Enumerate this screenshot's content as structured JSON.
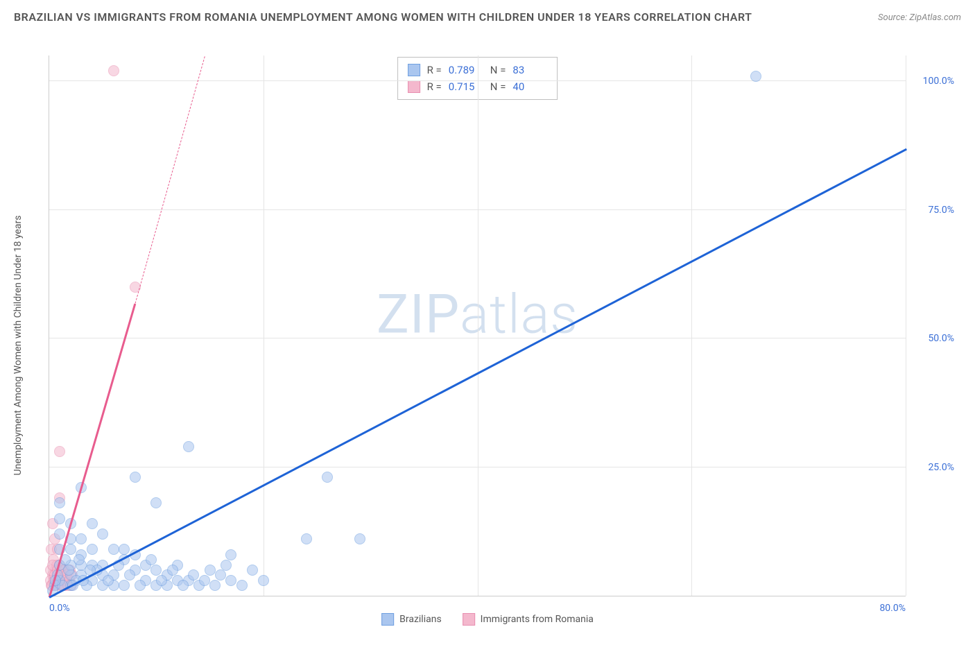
{
  "title": "BRAZILIAN VS IMMIGRANTS FROM ROMANIA UNEMPLOYMENT AMONG WOMEN WITH CHILDREN UNDER 18 YEARS CORRELATION CHART",
  "source": "Source: ZipAtlas.com",
  "yaxis_label": "Unemployment Among Women with Children Under 18 years",
  "watermark_a": "ZIP",
  "watermark_b": "atlas",
  "chart": {
    "type": "scatter",
    "xlim": [
      0,
      80
    ],
    "ylim": [
      0,
      105
    ],
    "xticks": [
      0.0,
      20.0,
      40.0,
      60.0,
      80.0
    ],
    "xtick_labels": [
      "0.0%",
      "",
      "",
      "",
      "80.0%"
    ],
    "yticks": [
      25.0,
      50.0,
      75.0,
      100.0
    ],
    "ytick_labels": [
      "25.0%",
      "50.0%",
      "75.0%",
      "100.0%"
    ],
    "grid_color": "#e5e5e5",
    "tick_label_color": "#3b6fd6",
    "background_color": "#ffffff",
    "series": [
      {
        "name": "Brazilians",
        "fill": "#aac6ef",
        "stroke": "#6f9fe0",
        "fill_opacity": 0.55,
        "marker_radius": 8,
        "trend_color": "#1e63d6",
        "trend": {
          "x1": 0,
          "y1": 0,
          "x2": 80,
          "y2": 87
        },
        "stats": {
          "R": "0.789",
          "N": "83"
        },
        "points": [
          [
            66,
            101
          ],
          [
            26,
            23
          ],
          [
            13,
            29
          ],
          [
            8,
            23
          ],
          [
            24,
            11
          ],
          [
            10,
            18
          ],
          [
            29,
            11
          ],
          [
            17,
            8
          ],
          [
            3,
            21
          ],
          [
            1,
            18
          ],
          [
            1,
            15
          ],
          [
            1,
            12
          ],
          [
            2,
            9
          ],
          [
            1,
            3
          ],
          [
            2,
            2
          ],
          [
            3,
            11
          ],
          [
            4,
            14
          ],
          [
            5,
            12
          ],
          [
            6,
            9
          ],
          [
            7,
            7
          ],
          [
            8,
            5
          ],
          [
            9,
            3
          ],
          [
            10,
            2
          ],
          [
            11,
            4
          ],
          [
            12,
            6
          ],
          [
            13,
            3
          ],
          [
            14,
            2
          ],
          [
            15,
            5
          ],
          [
            16,
            4
          ],
          [
            17,
            3
          ],
          [
            18,
            2
          ],
          [
            19,
            5
          ],
          [
            20,
            3
          ],
          [
            5,
            2
          ],
          [
            6,
            4
          ],
          [
            7,
            2
          ],
          [
            8,
            8
          ],
          [
            9,
            6
          ],
          [
            10,
            5
          ],
          [
            11,
            2
          ],
          [
            12,
            3
          ],
          [
            2,
            6
          ],
          [
            3,
            4
          ],
          [
            4,
            3
          ],
          [
            5,
            6
          ],
          [
            6,
            2
          ],
          [
            7,
            9
          ],
          [
            2,
            14
          ],
          [
            3,
            8
          ],
          [
            4,
            6
          ],
          [
            5,
            4
          ],
          [
            2,
            4
          ],
          [
            1,
            6
          ],
          [
            1,
            9
          ],
          [
            2,
            11
          ],
          [
            3,
            6
          ],
          [
            4,
            9
          ],
          [
            0.5,
            2
          ],
          [
            0.8,
            4
          ],
          [
            1.2,
            2
          ],
          [
            1.5,
            7
          ],
          [
            2.5,
            3
          ],
          [
            3.5,
            2
          ],
          [
            4.5,
            5
          ],
          [
            5.5,
            3
          ],
          [
            6.5,
            6
          ],
          [
            7.5,
            4
          ],
          [
            8.5,
            2
          ],
          [
            9.5,
            7
          ],
          [
            10.5,
            3
          ],
          [
            11.5,
            5
          ],
          [
            12.5,
            2
          ],
          [
            13.5,
            4
          ],
          [
            14.5,
            3
          ],
          [
            15.5,
            2
          ],
          [
            16.5,
            6
          ],
          [
            0.3,
            1
          ],
          [
            0.6,
            3
          ],
          [
            1.8,
            5
          ],
          [
            2.2,
            2
          ],
          [
            2.8,
            7
          ],
          [
            3.2,
            3
          ],
          [
            3.8,
            5
          ]
        ]
      },
      {
        "name": "Immigrants from Romania",
        "fill": "#f4b8cd",
        "stroke": "#e88fb0",
        "fill_opacity": 0.55,
        "marker_radius": 8,
        "trend_color": "#e85c8e",
        "trend": {
          "x1": 0,
          "y1": 0,
          "x2": 8,
          "y2": 57
        },
        "trend_dash": {
          "x1": 8,
          "y1": 57,
          "x2": 14.5,
          "y2": 105
        },
        "stats": {
          "R": "0.715",
          "N": "40"
        },
        "points": [
          [
            6,
            102
          ],
          [
            8,
            60
          ],
          [
            1,
            28
          ],
          [
            1,
            19
          ],
          [
            0.3,
            14
          ],
          [
            0.5,
            11
          ],
          [
            0.2,
            9
          ],
          [
            0.8,
            9
          ],
          [
            0.4,
            7
          ],
          [
            0.6,
            5
          ],
          [
            0.3,
            4
          ],
          [
            0.5,
            3
          ],
          [
            0.2,
            2
          ],
          [
            0.7,
            6
          ],
          [
            0.9,
            4
          ],
          [
            1.1,
            3
          ],
          [
            1.3,
            5
          ],
          [
            1.5,
            2
          ],
          [
            0.1,
            3
          ],
          [
            0.15,
            5
          ],
          [
            0.25,
            2
          ],
          [
            0.35,
            6
          ],
          [
            0.45,
            3
          ],
          [
            0.55,
            4
          ],
          [
            0.65,
            2
          ],
          [
            0.75,
            5
          ],
          [
            0.85,
            3
          ],
          [
            0.95,
            6
          ],
          [
            1.05,
            2
          ],
          [
            1.15,
            4
          ],
          [
            1.25,
            3
          ],
          [
            1.35,
            2
          ],
          [
            1.45,
            5
          ],
          [
            1.55,
            3
          ],
          [
            1.65,
            4
          ],
          [
            1.75,
            2
          ],
          [
            1.85,
            3
          ],
          [
            1.95,
            5
          ],
          [
            2.05,
            2
          ],
          [
            2.15,
            4
          ]
        ]
      }
    ]
  },
  "stats_labels": {
    "R": "R =",
    "N": "N ="
  },
  "bottom_legend": [
    "Brazilians",
    "Immigrants from Romania"
  ]
}
